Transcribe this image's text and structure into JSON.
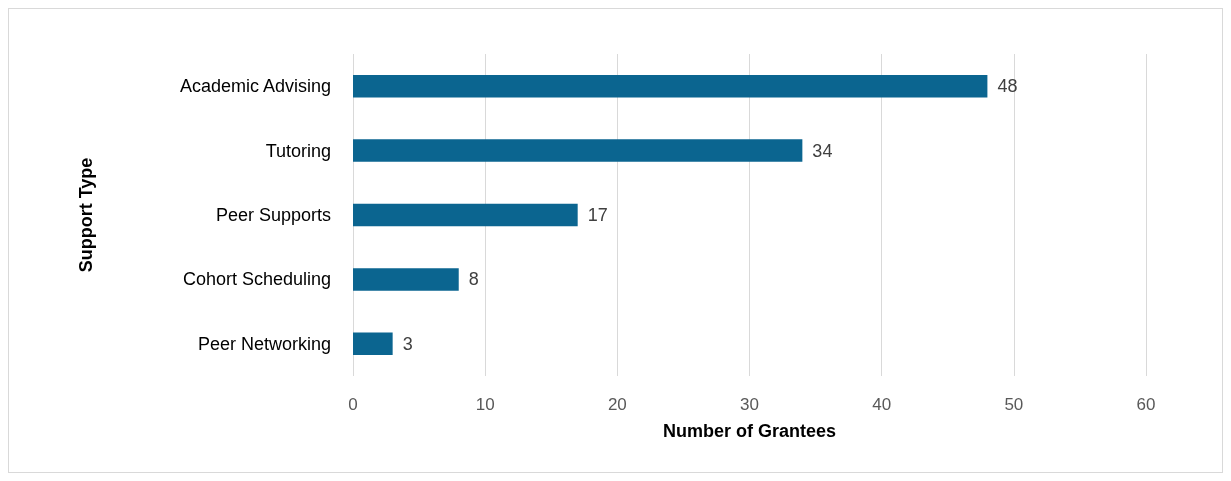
{
  "chart_data": {
    "type": "bar",
    "orientation": "horizontal",
    "xlabel": "Number of Grantees",
    "ylabel": "Support Type",
    "categories": [
      "Academic Advising",
      "Tutoring",
      "Peer Supports",
      "Cohort Scheduling",
      "Peer Networking"
    ],
    "values": [
      48,
      34,
      17,
      8,
      3
    ],
    "color": "#0b6590",
    "xlim": [
      0,
      60
    ],
    "xticks": [
      0,
      10,
      20,
      30,
      40,
      50,
      60
    ],
    "grid": "x",
    "data_labels": true
  }
}
